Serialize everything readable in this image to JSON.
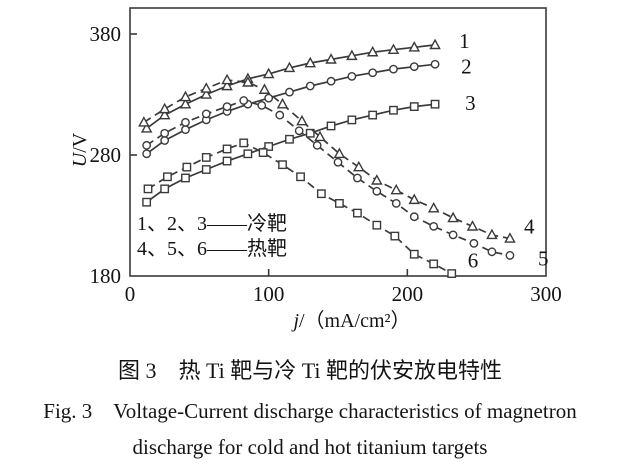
{
  "caption": {
    "zh": "图 3　热 Ti 靶与冷 Ti 靶的伏安放电特性",
    "en_line1": "Fig. 3　Voltage-Current discharge characteristics of magnetron",
    "en_line2": "discharge for cold and hot titanium targets"
  },
  "colors": {
    "ink": "#3a3a3a",
    "text": "#141414",
    "background": "#ffffff"
  },
  "chart_data": {
    "type": "line",
    "title": "",
    "xlabel": "j/（mA/cm²）",
    "ylabel": "U/V",
    "xlim": [
      0,
      300
    ],
    "ylim": [
      180,
      400
    ],
    "grid": false,
    "x_ticks": [
      "0",
      "100",
      "200",
      "300"
    ],
    "x_tick_values": [
      0,
      100,
      200,
      300
    ],
    "y_ticks": [
      "380",
      "280",
      "180"
    ],
    "y_tick_values": [
      380,
      280,
      180
    ],
    "legend_position": "inside bottom-left",
    "legend": [
      "1、2、3——冷靶",
      "4、5、6——热靶"
    ],
    "series": [
      {
        "name": "1",
        "group": "冷靶",
        "marker": "triangle",
        "line": "solid",
        "x": [
          12,
          25,
          40,
          55,
          70,
          85,
          100,
          115,
          130,
          145,
          160,
          175,
          190,
          205,
          220
        ],
        "y": [
          302,
          313,
          322,
          330,
          337,
          343,
          347,
          352,
          356,
          359,
          362,
          365,
          367,
          369,
          371
        ]
      },
      {
        "name": "2",
        "group": "冷靶",
        "marker": "circle",
        "line": "solid",
        "x": [
          12,
          25,
          40,
          55,
          70,
          85,
          100,
          115,
          130,
          145,
          160,
          175,
          190,
          205,
          220
        ],
        "y": [
          281,
          292,
          301,
          309,
          316,
          322,
          327,
          332,
          337,
          341,
          345,
          348,
          351,
          353,
          355
        ]
      },
      {
        "name": "3",
        "group": "冷靶",
        "marker": "square",
        "line": "solid",
        "x": [
          12,
          25,
          40,
          55,
          70,
          85,
          100,
          115,
          130,
          145,
          160,
          175,
          190,
          205,
          220
        ],
        "y": [
          241,
          252,
          261,
          268,
          275,
          281,
          287,
          293,
          298,
          304,
          309,
          313,
          317,
          320,
          322
        ]
      },
      {
        "name": "4",
        "group": "热靶",
        "marker": "triangle",
        "line": "dashed",
        "x": [
          10,
          25,
          40,
          55,
          70,
          85,
          97,
          110,
          124,
          137,
          151,
          165,
          178,
          192,
          205,
          219,
          233,
          247,
          261,
          274
        ],
        "y": [
          307,
          318,
          328,
          335,
          342,
          340,
          334,
          322,
          308,
          295,
          281,
          270,
          259,
          251,
          243,
          236,
          228,
          221,
          214,
          211
        ]
      },
      {
        "name": "5",
        "group": "热靶",
        "marker": "circle",
        "line": "dashed",
        "x": [
          12,
          25,
          40,
          55,
          70,
          82,
          95,
          108,
          122,
          135,
          150,
          164,
          178,
          192,
          205,
          219,
          233,
          248,
          261,
          274
        ],
        "y": [
          288,
          298,
          307,
          314,
          320,
          325,
          321,
          313,
          300,
          288,
          274,
          261,
          250,
          240,
          229,
          221,
          214,
          207,
          200,
          197
        ]
      },
      {
        "name": "6",
        "group": "热靶",
        "marker": "square",
        "line": "dashed",
        "x": [
          13,
          27,
          41,
          55,
          70,
          82,
          96,
          110,
          123,
          138,
          151,
          164,
          178,
          191,
          205,
          219,
          232
        ],
        "y": [
          252,
          262,
          270,
          278,
          285,
          290,
          282,
          272,
          262,
          248,
          240,
          232,
          222,
          213,
          198,
          190,
          182
        ]
      }
    ]
  }
}
